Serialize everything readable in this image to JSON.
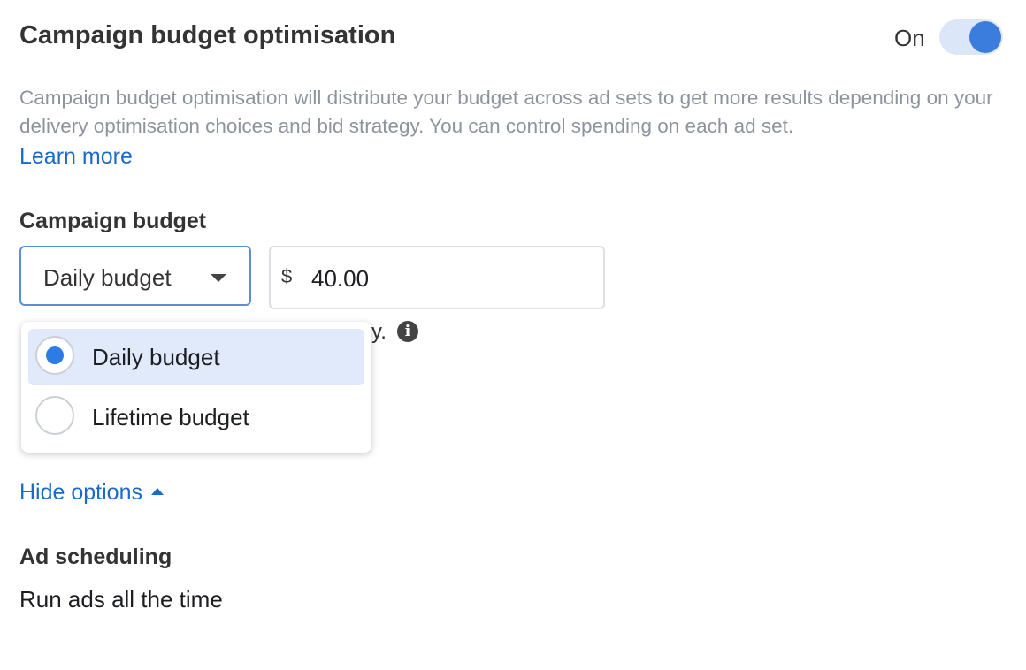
{
  "header": {
    "title": "Campaign budget optimisation",
    "toggle_label": "On"
  },
  "description": "Campaign budget optimisation will distribute your budget across ad sets to get more results depending on your delivery optimisation choices and bid strategy. You can control spending on each ad set.",
  "learn_more": "Learn more",
  "budget": {
    "label": "Campaign budget",
    "type_select": "Daily budget",
    "currency": "$",
    "amount": "40.00",
    "helper_fragment": "y."
  },
  "dropdown": {
    "options": [
      "Daily budget",
      "Lifetime budget"
    ]
  },
  "hide_options": "Hide options",
  "scheduling": {
    "label": "Ad scheduling",
    "value": "Run ads all the time"
  }
}
